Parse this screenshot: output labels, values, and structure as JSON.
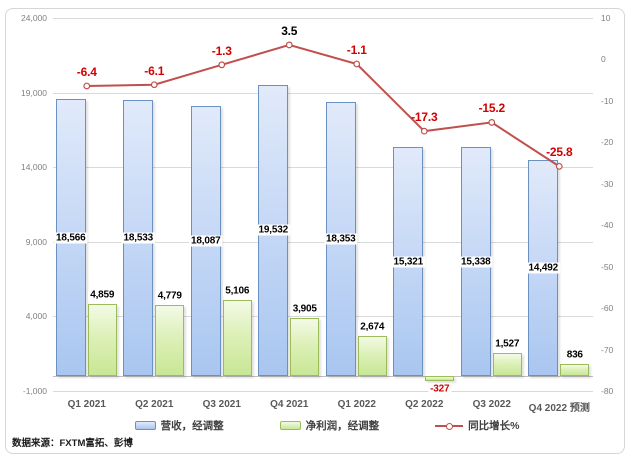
{
  "chart_data": {
    "type": "combo",
    "title": "",
    "categories": [
      "Q1 2021",
      "Q2 2021",
      "Q3 2021",
      "Q4 2021",
      "Q1 2022",
      "Q2 2022",
      "Q3 2022",
      "Q4 2022 预测"
    ],
    "series": [
      {
        "name": "营收，经调整",
        "type": "bar",
        "axis": "left",
        "values": [
          18566,
          18533,
          18087,
          19532,
          18353,
          15321,
          15338,
          14492
        ],
        "color_top": "#e1eafa",
        "color_bottom": "#a9c6f0",
        "border": "#6b90c2",
        "label_position": "inside-center"
      },
      {
        "name": "净利润，经调整",
        "type": "bar",
        "axis": "left",
        "values": [
          4859,
          4779,
          5106,
          3905,
          2674,
          -327,
          1527,
          836
        ],
        "color_top": "#f3fae6",
        "color_bottom": "#c8e795",
        "border": "#9cbc5c",
        "label_position": "outside-end"
      },
      {
        "name": "同比增长%",
        "type": "line",
        "axis": "right",
        "values": [
          -6.4,
          -6.1,
          -1.3,
          3.5,
          -1.1,
          -17.3,
          -15.2,
          -25.8
        ],
        "color": "#c0504d",
        "marker": "circle",
        "marker_fill": "#ffffff"
      }
    ],
    "left_axis": {
      "min": -1000,
      "max": 24000,
      "step": 5000,
      "tick_values": [
        24000,
        19000,
        14000,
        9000,
        4000,
        -1000
      ],
      "tick_labels": [
        "24,000",
        "19,000",
        "14,000",
        "9,000",
        "4,000",
        "-1,000"
      ]
    },
    "right_axis": {
      "min": -80,
      "max": 10,
      "step": 10,
      "tick_values": [
        10,
        0,
        -10,
        -20,
        -30,
        -40,
        -50,
        -60,
        -70,
        -80
      ],
      "tick_labels": [
        "10",
        "0",
        "-10",
        "-20",
        "-30",
        "-40",
        "-50",
        "-60",
        "-70",
        "-80"
      ]
    },
    "grid": "horizontal",
    "legend_position": "bottom",
    "positive_label_color": "#000000",
    "negative_label_color": "#d40000",
    "gridline_color": "#d9d9d9",
    "axisline_color": "#bfbfbf"
  },
  "footer": {
    "source": "数据来源：FXTM富拓、彭博"
  }
}
